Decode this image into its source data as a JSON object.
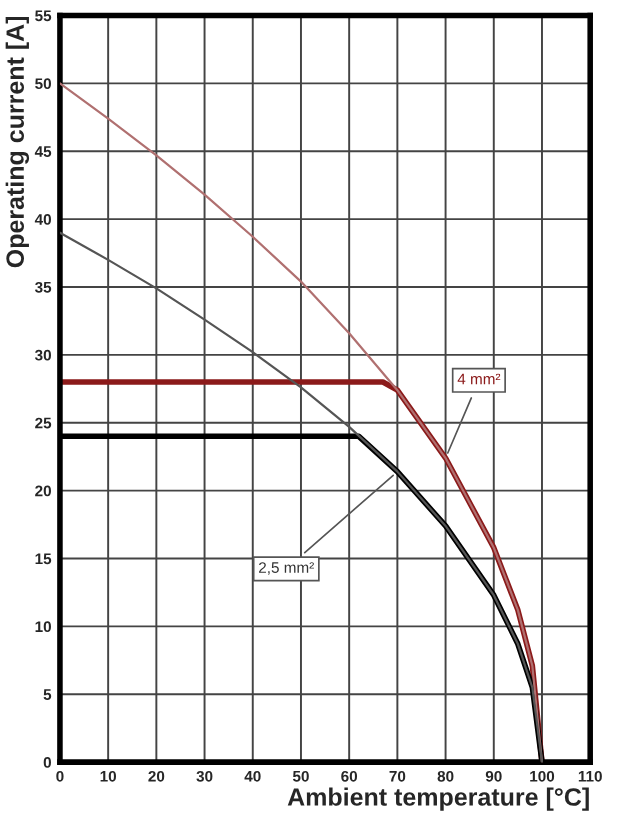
{
  "chart_data": {
    "type": "line",
    "xlabel": "Ambient temperature [°C]",
    "ylabel": "Operating current [A]",
    "xlim": [
      0,
      110
    ],
    "xticks": [
      0,
      10,
      20,
      30,
      40,
      50,
      60,
      70,
      80,
      90,
      100,
      110
    ],
    "ylim": [
      0,
      55
    ],
    "yticks": [
      0,
      5,
      10,
      15,
      20,
      25,
      30,
      35,
      40,
      45,
      50,
      55
    ],
    "grid": true,
    "legend": false,
    "marker": "none",
    "line_style": "solid",
    "series": [
      {
        "color": "#b07070",
        "x": [
          0,
          10,
          20,
          30,
          40,
          50,
          60,
          70,
          80,
          90,
          95,
          98,
          100
        ],
        "values": [
          50,
          47.4,
          44.7,
          41.8,
          38.7,
          35.4,
          31.6,
          27.4,
          22.4,
          15.8,
          11.2,
          7.1,
          0
        ]
      },
      {
        "color": "#555555",
        "x": [
          0,
          10,
          20,
          30,
          40,
          50,
          60,
          70,
          80,
          90,
          95,
          98,
          100
        ],
        "values": [
          39,
          37.0,
          34.9,
          32.6,
          30.2,
          27.6,
          24.7,
          21.4,
          17.4,
          12.3,
          8.7,
          5.5,
          0
        ]
      },
      {
        "color": "#8b1a1a",
        "x": [
          0,
          67,
          70,
          80,
          90,
          95,
          98,
          100
        ],
        "values": [
          28,
          28,
          27.4,
          22.4,
          15.8,
          11.2,
          7.1,
          0
        ]
      },
      {
        "color": "#000000",
        "x": [
          0,
          62,
          70,
          80,
          90,
          95,
          98,
          100
        ],
        "values": [
          24,
          24,
          21.4,
          17.4,
          12.3,
          8.7,
          5.5,
          0
        ]
      }
    ],
    "annotations": [
      {
        "text": "4 mm²",
        "x": 80,
        "y": 22.4
      },
      {
        "text": "2,5 mm²",
        "x": 70,
        "y": 21.4
      }
    ]
  }
}
